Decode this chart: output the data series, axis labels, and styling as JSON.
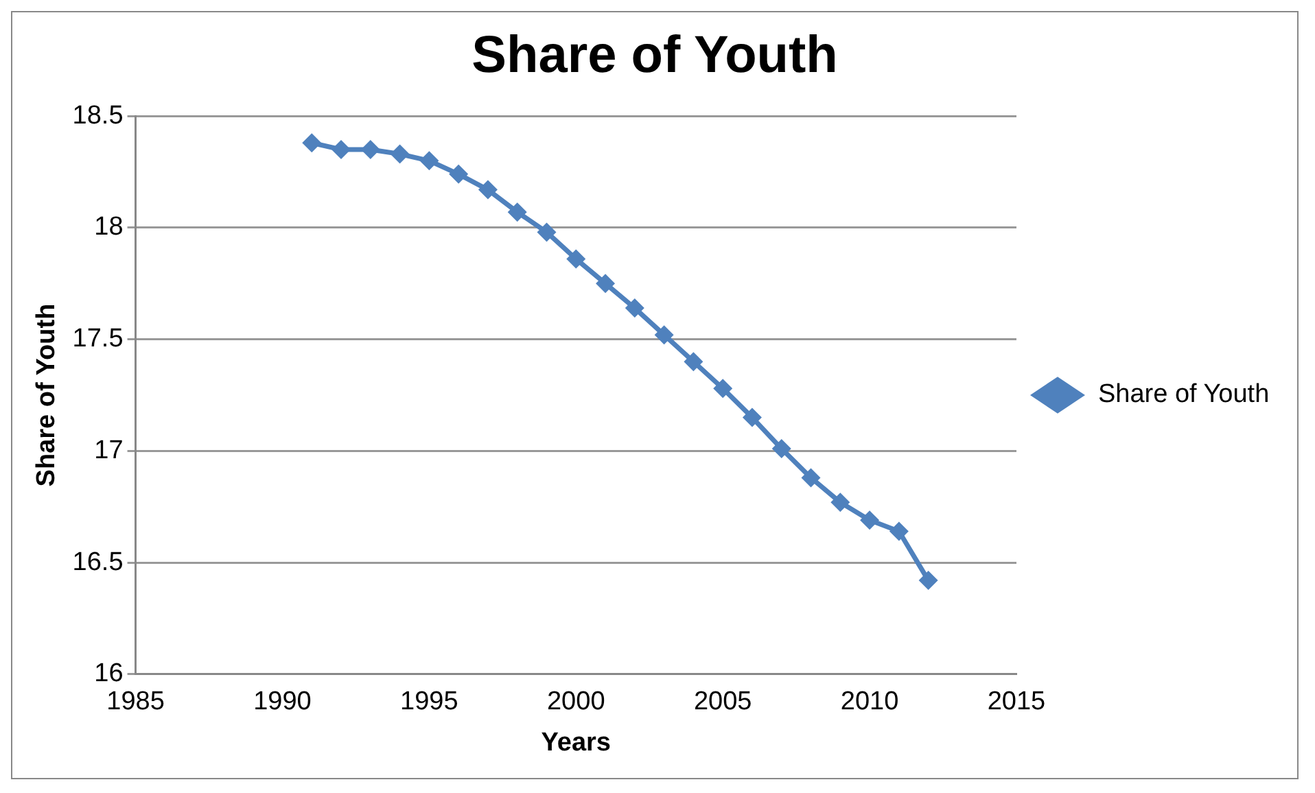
{
  "chart_data": {
    "type": "line",
    "title": "Share of Youth",
    "xlabel": "Years",
    "ylabel": "Share of Youth",
    "x": [
      1991,
      1992,
      1993,
      1994,
      1995,
      1996,
      1997,
      1998,
      1999,
      2000,
      2001,
      2002,
      2003,
      2004,
      2005,
      2006,
      2007,
      2008,
      2009,
      2010,
      2011,
      2012
    ],
    "series": [
      {
        "name": "Share of Youth",
        "color": "#4f81bd",
        "values": [
          18.38,
          18.35,
          18.35,
          18.33,
          18.3,
          18.24,
          18.17,
          18.07,
          17.98,
          17.86,
          17.75,
          17.64,
          17.52,
          17.4,
          17.28,
          17.15,
          17.01,
          16.88,
          16.77,
          16.69,
          16.64,
          16.42
        ]
      }
    ],
    "xlim": [
      1985,
      2015
    ],
    "xticks": [
      1985,
      1990,
      1995,
      2000,
      2005,
      2010,
      2015
    ],
    "ylim": [
      16,
      18.5
    ],
    "yticks": [
      16,
      16.5,
      17,
      17.5,
      18,
      18.5
    ],
    "grid": "y",
    "legend": "right",
    "marker": "diamond",
    "line_style": "solid"
  }
}
